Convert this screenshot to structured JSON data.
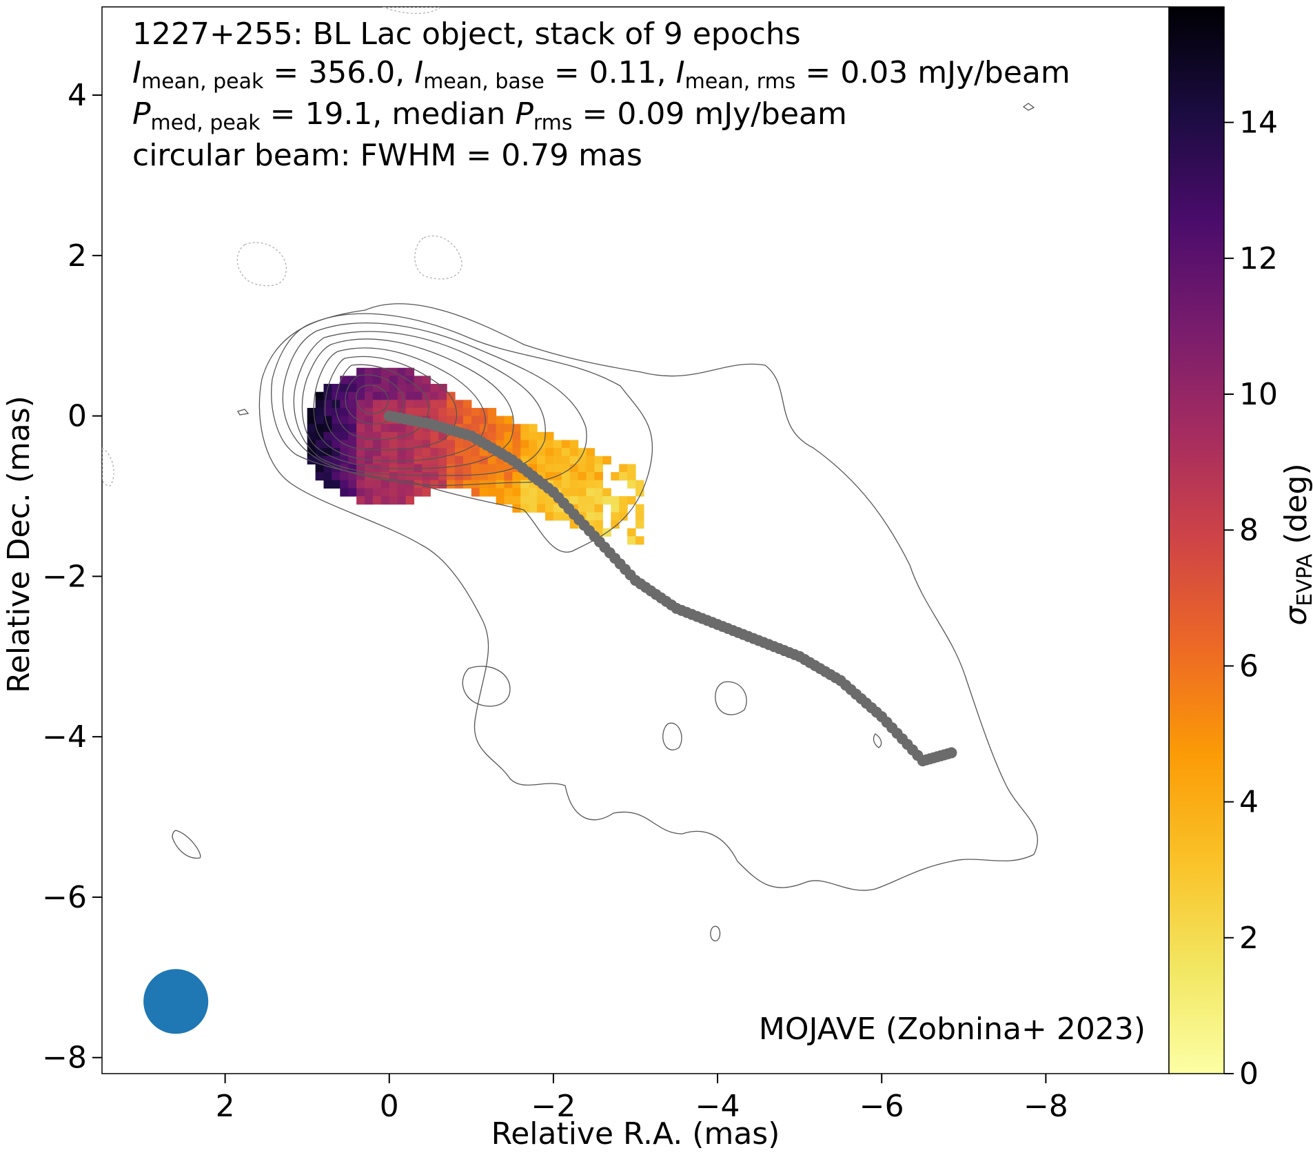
{
  "chart_data": {
    "type": "heatmap",
    "description_lines": {
      "line1": "1227+255: BL Lac object, stack of 9 epochs",
      "line2_parts": {
        "i": "I",
        "sub1": "mean, peak",
        "v1": " = 356.0, ",
        "sub2": "mean, base",
        "v2": " = 0.11, ",
        "sub3": "mean, rms",
        "v3": " = 0.03 mJy/beam"
      },
      "line3_parts": {
        "p": "P",
        "sub1": "med, peak",
        "v1": " = 19.1, median ",
        "sub2": "rms",
        "v2": " = 0.09 mJy/beam"
      },
      "line4": "circular beam: FWHM = 0.79 mas"
    },
    "credit": "MOJAVE (Zobnina+ 2023)",
    "xlabel": "Relative R.A. (mas)",
    "ylabel": "Relative Dec. (mas)",
    "colorbar_label_sigma": "σ",
    "colorbar_label_sub": "EVPA",
    "colorbar_label_unit": " (deg)",
    "xlim": [
      3.5,
      -9.5
    ],
    "ylim": [
      -8.2,
      5.1
    ],
    "x_ticks": [
      2,
      0,
      -2,
      -4,
      -6,
      -8
    ],
    "x_tick_labels": [
      "2",
      "0",
      "−2",
      "−4",
      "−6",
      "−8"
    ],
    "y_ticks": [
      4,
      2,
      0,
      -2,
      -4,
      -6,
      -8
    ],
    "y_tick_labels": [
      "4",
      "2",
      "0",
      "−2",
      "−4",
      "−6",
      "−8"
    ],
    "colorbar_range": [
      0,
      15.7
    ],
    "colorbar_ticks": [
      0,
      2,
      4,
      6,
      8,
      10,
      12,
      14
    ],
    "colorbar_tick_labels": [
      "0",
      "2",
      "4",
      "6",
      "8",
      "10",
      "12",
      "14"
    ],
    "colormap": "inferno_r",
    "ridgeline": {
      "x": [
        0,
        -0.5,
        -1,
        -1.5,
        -2,
        -2.5,
        -3,
        -3.5,
        -4,
        -4.5,
        -5,
        -5.5,
        -6,
        -6.5,
        -6.85
      ],
      "y": [
        0,
        -0.1,
        -0.25,
        -0.55,
        -0.95,
        -1.5,
        -2.05,
        -2.4,
        -2.6,
        -2.8,
        -3.0,
        -3.3,
        -3.75,
        -4.3,
        -4.2
      ]
    },
    "beam": {
      "x": 2.6,
      "y": -7.3,
      "fwhm": 0.79,
      "color": "#1f77b4"
    },
    "ridgeline_color": "#6b6b6b"
  }
}
